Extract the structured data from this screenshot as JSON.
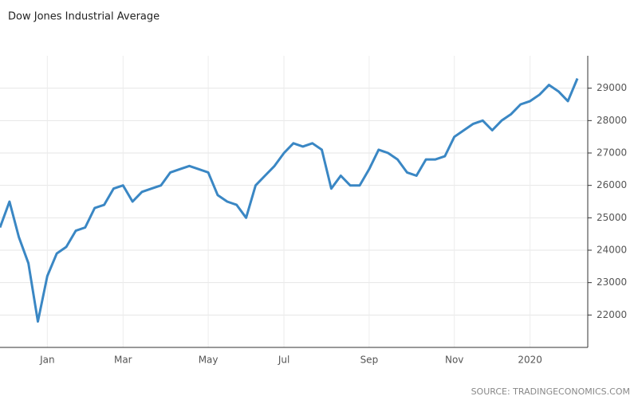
{
  "chart_data": {
    "type": "line",
    "title": "Dow Jones Industrial Average",
    "source": "SOURCE: TRADINGECONOMICS.COM",
    "categories": [
      null,
      null,
      null,
      null,
      null,
      "Jan",
      null,
      null,
      null,
      null,
      null,
      null,
      null,
      "Mar",
      null,
      null,
      null,
      null,
      null,
      null,
      null,
      null,
      "May",
      null,
      null,
      null,
      null,
      null,
      null,
      null,
      "Jul",
      null,
      null,
      null,
      null,
      null,
      null,
      null,
      null,
      "Sep",
      null,
      null,
      null,
      null,
      null,
      null,
      null,
      null,
      "Nov",
      null,
      null,
      null,
      null,
      null,
      null,
      null,
      "2020",
      null,
      null,
      null,
      null,
      null
    ],
    "series": [
      {
        "name": "Dow Jones Industrial Average",
        "color": "#3a87c4",
        "values": [
          24700,
          25500,
          24400,
          23600,
          21800,
          23200,
          23900,
          24100,
          24600,
          24700,
          25300,
          25400,
          25900,
          26000,
          25500,
          25800,
          25900,
          26000,
          26400,
          26500,
          26600,
          26500,
          26400,
          25700,
          25500,
          25400,
          25000,
          26000,
          26300,
          26600,
          27000,
          27300,
          27200,
          27300,
          27100,
          25900,
          26300,
          26000,
          26000,
          26500,
          27100,
          27000,
          26800,
          26400,
          26300,
          26800,
          26800,
          26900,
          27500,
          27700,
          27900,
          28000,
          27700,
          28000,
          28200,
          28500,
          28600,
          28800,
          29100,
          28900,
          28600,
          29300
        ]
      }
    ],
    "ylim": [
      21000,
      30000
    ],
    "yticks": [
      22000,
      23000,
      24000,
      25000,
      26000,
      27000,
      28000,
      29000
    ],
    "grid": true
  }
}
